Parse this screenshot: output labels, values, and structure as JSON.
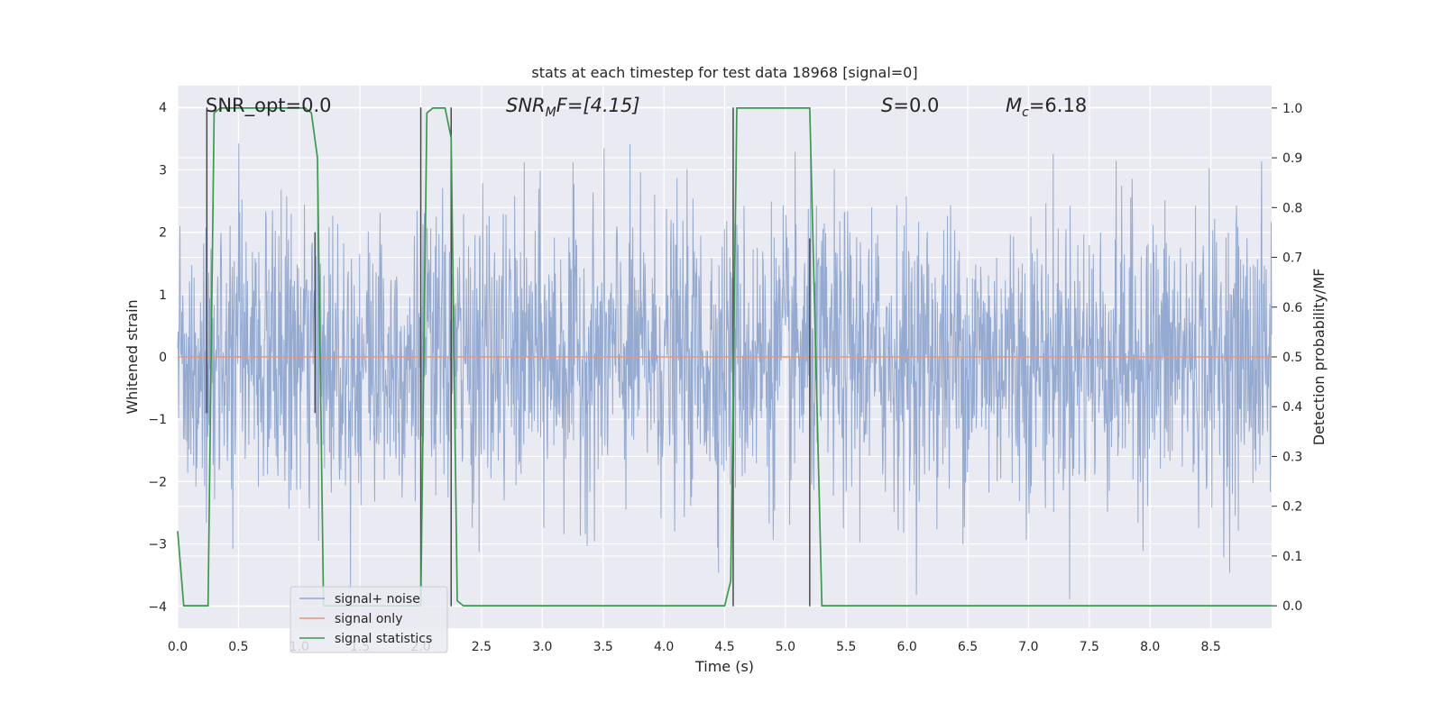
{
  "chart_data": {
    "type": "line",
    "title": "stats at each timestep for test data 18968 [signal=0]",
    "xlabel": "Time (s)",
    "ylabel_left": "Whitened strain",
    "ylabel_right": "Detection probability/MF",
    "xlim": [
      0.0,
      9.0
    ],
    "ylim_left": [
      -4.35,
      4.35
    ],
    "ylim_right": [
      -0.045,
      1.045
    ],
    "xticks": [
      "0.0",
      "0.5",
      "1.0",
      "1.5",
      "2.0",
      "2.5",
      "3.0",
      "3.5",
      "4.0",
      "4.5",
      "5.0",
      "5.5",
      "6.0",
      "6.5",
      "7.0",
      "7.5",
      "8.0",
      "8.5"
    ],
    "yticks_left": [
      "4",
      "3",
      "2",
      "1",
      "0",
      "−1",
      "−2",
      "−3",
      "−4"
    ],
    "yticks_right": [
      "1.0",
      "0.9",
      "0.8",
      "0.7",
      "0.6",
      "0.5",
      "0.4",
      "0.3",
      "0.2",
      "0.1",
      "0.0"
    ],
    "grid": true,
    "legend_position": "lower-left",
    "annotations": {
      "snr_opt": "SNR_opt=0.0",
      "snr_mf_main": "SNR",
      "snr_mf_sub": "M",
      "snr_mf_tail": "F=[4.15]",
      "s_main": "S",
      "s_tail": "=0.0",
      "mc_main": "M",
      "mc_sub": "c",
      "mc_tail": "=6.18"
    },
    "series": [
      {
        "name": "signal+ noise",
        "color": "#8fa6cf",
        "description_values": "whitened noise strain, approx range [-4, 4]"
      },
      {
        "name": "signal only",
        "color": "#e8967a",
        "x": [
          0.0,
          9.0
        ],
        "y": [
          0.0,
          0.0
        ]
      },
      {
        "name": "signal statistics",
        "color": "#3a9a4c",
        "x": [
          0.0,
          0.05,
          0.1,
          0.15,
          0.2,
          0.25,
          0.3,
          0.35,
          0.4,
          0.5,
          0.6,
          0.7,
          0.8,
          0.9,
          1.0,
          1.05,
          1.1,
          1.15,
          1.2,
          1.25,
          1.3,
          1.9,
          2.0,
          2.05,
          2.1,
          2.15,
          2.2,
          2.25,
          2.3,
          2.35,
          2.4,
          3.0,
          3.5,
          4.0,
          4.5,
          4.55,
          4.6,
          4.65,
          5.0,
          5.1,
          5.2,
          5.25,
          5.3,
          5.35,
          5.5,
          6.0,
          7.0,
          8.0,
          9.0
        ],
        "y": [
          0.15,
          0.0,
          0.0,
          0.0,
          0.0,
          0.0,
          0.99,
          1.0,
          1.0,
          1.0,
          1.0,
          1.0,
          1.0,
          1.0,
          1.0,
          1.0,
          0.99,
          0.9,
          0.0,
          0.0,
          0.0,
          0.0,
          0.0,
          0.99,
          1.0,
          1.0,
          1.0,
          0.94,
          0.01,
          0.0,
          0.0,
          0.0,
          0.0,
          0.0,
          0.0,
          0.05,
          1.0,
          1.0,
          1.0,
          1.0,
          1.0,
          0.5,
          0.0,
          0.0,
          0.0,
          0.0,
          0.0,
          0.0,
          0.0
        ]
      }
    ],
    "vlines": {
      "color": "#4a4a4a",
      "x": [
        0.24,
        1.13,
        2.0,
        2.25,
        4.57,
        5.2
      ],
      "ymin": [
        -0.9,
        -0.9,
        -4.0,
        -4.0,
        -4.0,
        -4.0
      ],
      "ymax": [
        4.0,
        2.0,
        4.0,
        4.0,
        4.0,
        1.9
      ]
    }
  }
}
